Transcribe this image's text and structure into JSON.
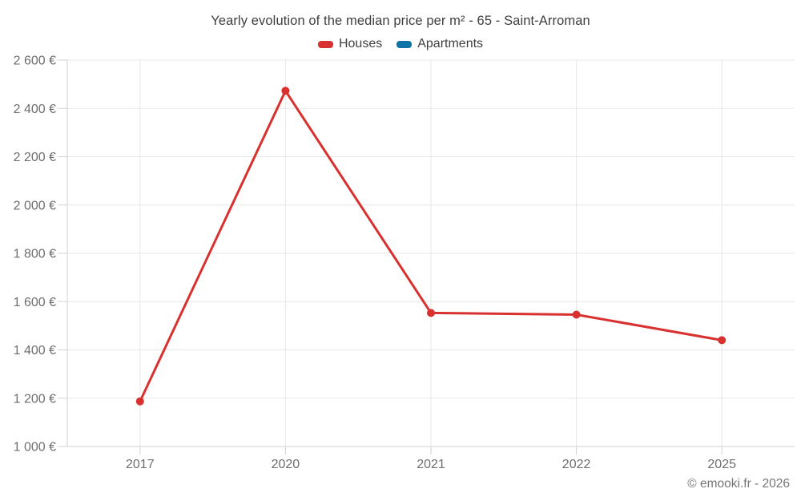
{
  "footer": {
    "credit": "© emooki.fr - 2026"
  },
  "chart_data": {
    "type": "line",
    "title": "Yearly evolution of the median price per m² - 65 - Saint-Arroman",
    "categories": [
      "2017",
      "2020",
      "2021",
      "2022",
      "2025"
    ],
    "series": [
      {
        "name": "Houses",
        "color": "#d8312f",
        "values": [
          1187,
          2473,
          1553,
          1546,
          1440
        ]
      },
      {
        "name": "Apartments",
        "color": "#0f73a6",
        "values": []
      }
    ],
    "xlabel": "",
    "ylabel": "",
    "ylim": [
      1000,
      2600
    ],
    "y_tick_step": 200,
    "y_tick_labels": [
      "1 000 €",
      "1 200 €",
      "1 400 €",
      "1 600 €",
      "1 800 €",
      "2 000 €",
      "2 200 €",
      "2 400 €",
      "2 600 €"
    ],
    "currency_suffix": "€",
    "grid": true,
    "legend_position": "top-center",
    "marker": "circle"
  }
}
